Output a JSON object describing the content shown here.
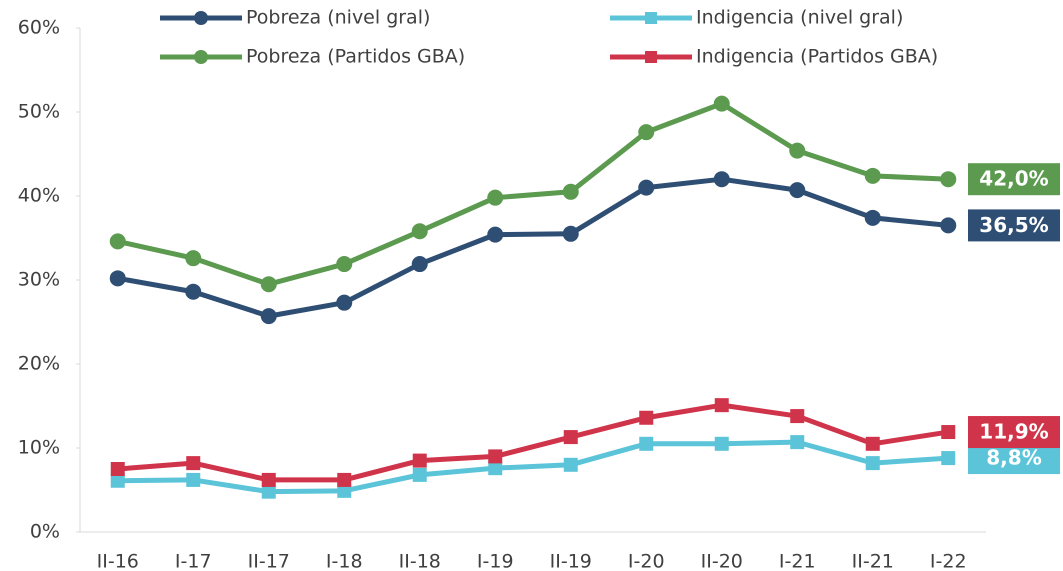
{
  "chart_data": {
    "type": "line",
    "categories": [
      "II-16",
      "I-17",
      "II-17",
      "I-18",
      "II-18",
      "I-19",
      "II-19",
      "I-20",
      "II-20",
      "I-21",
      "II-21",
      "I-22"
    ],
    "ylim": [
      0,
      60
    ],
    "yticks": [
      {
        "value": 0,
        "label": "0%"
      },
      {
        "value": 10,
        "label": "10%"
      },
      {
        "value": 20,
        "label": "20%"
      },
      {
        "value": 30,
        "label": "30%"
      },
      {
        "value": 40,
        "label": "40%"
      },
      {
        "value": 50,
        "label": "50%"
      },
      {
        "value": 60,
        "label": "60%"
      }
    ],
    "grid": false,
    "series": [
      {
        "name": "Pobreza (nivel gral)",
        "color": "#2e4e73",
        "marker": "circle",
        "values": [
          30.2,
          28.6,
          25.7,
          27.3,
          31.9,
          35.4,
          35.5,
          41.0,
          42.0,
          40.7,
          37.4,
          36.5
        ],
        "value_labels": [
          null,
          null,
          null,
          null,
          null,
          null,
          null,
          null,
          null,
          null,
          null,
          "36,5%"
        ]
      },
      {
        "name": "Indigencia (nivel gral)",
        "color": "#5bc4d9",
        "marker": "square",
        "values": [
          6.1,
          6.2,
          4.8,
          4.9,
          6.8,
          7.6,
          8.0,
          10.5,
          10.5,
          10.7,
          8.2,
          8.8
        ],
        "value_labels": [
          null,
          null,
          null,
          null,
          null,
          null,
          null,
          null,
          null,
          null,
          null,
          "8,8%"
        ]
      },
      {
        "name": "Pobreza (Partidos GBA)",
        "color": "#5b9a4f",
        "marker": "circle",
        "values": [
          34.6,
          32.6,
          29.5,
          31.9,
          35.8,
          39.8,
          40.5,
          47.6,
          51.0,
          45.4,
          42.4,
          42.0
        ],
        "value_labels": [
          null,
          null,
          null,
          null,
          null,
          null,
          null,
          null,
          null,
          null,
          null,
          "42,0%"
        ]
      },
      {
        "name": "Indigencia (Partidos GBA)",
        "color": "#d0344a",
        "marker": "square",
        "values": [
          7.5,
          8.2,
          6.2,
          6.2,
          8.5,
          9.0,
          11.3,
          13.6,
          15.1,
          13.8,
          10.5,
          11.9
        ],
        "value_labels": [
          null,
          null,
          null,
          null,
          null,
          null,
          null,
          null,
          null,
          null,
          null,
          "11,9%"
        ]
      }
    ]
  }
}
